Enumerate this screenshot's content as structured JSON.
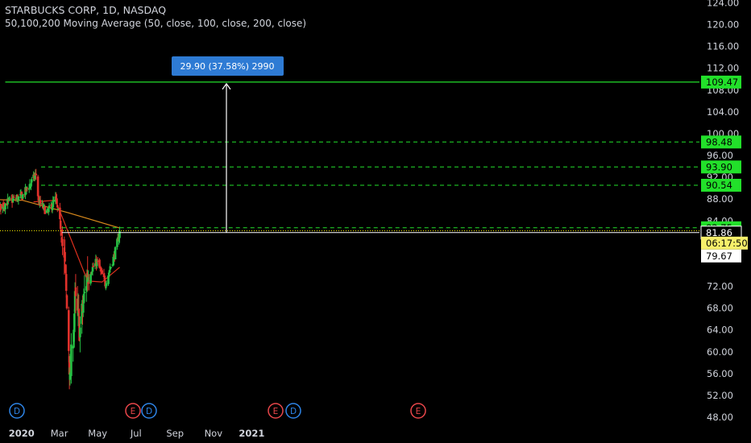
{
  "header": {
    "title": "STARBUCKS CORP, 1D, NASDAQ",
    "indicator": "50,100,200 Moving Average (50, close, 100, close, 200, close)"
  },
  "colors": {
    "background": "#000000",
    "up": "#26c244",
    "down": "#e0312b",
    "text": "#d1d4dc",
    "green_level": "#22e02a",
    "white_level": "#ffffff",
    "dotted_level": "#f2e600",
    "ma_fast": "#e0301e",
    "ma_slow": "#d98a1c",
    "callout": "#2e7bd4",
    "earnings": "#e8464a",
    "dividend": "#2e84e6"
  },
  "chart_data": {
    "type": "candlestick",
    "title": "STARBUCKS CORP, 1D, NASDAQ",
    "indicator": "50,100,200 Moving Average (50, close, 100, close, 200, close)",
    "y_axis_ticks": [
      "124.00",
      "120.00",
      "116.00",
      "112.00",
      "108.00",
      "104.00",
      "100.00",
      "96.00",
      "92.00",
      "88.00",
      "84.00",
      "72.00",
      "68.00",
      "64.00",
      "60.00",
      "56.00",
      "52.00",
      "48.00"
    ],
    "x_axis_ticks": [
      "Nov",
      "2020",
      "Mar",
      "May",
      "Jul",
      "Sep",
      "Nov",
      "2021"
    ],
    "ylim": [
      48,
      124
    ],
    "price_tags": [
      {
        "label": "109.47",
        "value": 109.47,
        "style": "green"
      },
      {
        "label": "98.48",
        "value": 98.48,
        "style": "green"
      },
      {
        "label": "93.90",
        "value": 93.9,
        "style": "green"
      },
      {
        "label": "90.54",
        "value": 90.54,
        "style": "green"
      },
      {
        "label": "82.75",
        "value": 82.75,
        "style": "green"
      },
      {
        "label": "81.86",
        "value": 81.86,
        "style": "white-outline"
      },
      {
        "label": "06:17:50",
        "value": 80.9,
        "style": "yellow"
      },
      {
        "label": "79.67",
        "value": 79.67,
        "style": "white"
      }
    ],
    "horizontal_levels": [
      {
        "value": 109.47,
        "style": "solid-green",
        "from": "Dec 2019"
      },
      {
        "value": 98.48,
        "style": "dashed-green",
        "from": "Oct 2019"
      },
      {
        "value": 93.9,
        "style": "dashed-green",
        "from": "Feb 2020"
      },
      {
        "value": 90.54,
        "style": "dashed-green",
        "from": "Feb 2020"
      },
      {
        "value": 82.75,
        "style": "dashed-green",
        "from": "Mar 2020"
      },
      {
        "value": 81.86,
        "style": "solid-white",
        "from": "Mar 2020"
      },
      {
        "value": 82.2,
        "style": "dotted-yellow",
        "from": "Oct 2019"
      }
    ],
    "measurement": {
      "label": "29.90 (37.58%) 2990",
      "from": 79.57,
      "to": 109.47
    },
    "events": [
      {
        "label": "D",
        "type": "dividend",
        "date": "Nov 2019"
      },
      {
        "label": "E",
        "type": "earnings",
        "date": "Jan 2020"
      },
      {
        "label": "D",
        "type": "dividend",
        "date": "Feb 2020"
      },
      {
        "label": "E",
        "type": "earnings",
        "date": "Apr 2020"
      },
      {
        "label": "D",
        "type": "dividend",
        "date": "May 2020"
      },
      {
        "label": "E",
        "type": "earnings",
        "date": "Jul 2020"
      }
    ],
    "price_path": [
      {
        "date": "Oct 21 2019",
        "close": 84.5
      },
      {
        "date": "Nov 15 2019",
        "close": 85.5
      },
      {
        "date": "Dec 10 2019",
        "close": 87.5
      },
      {
        "date": "Jan 2 2020",
        "close": 88.5
      },
      {
        "date": "Jan 24 2020",
        "close": 92.5
      },
      {
        "date": "Jan 28 2020",
        "close": 87.5
      },
      {
        "date": "Feb 11 2020",
        "close": 85.5
      },
      {
        "date": "Feb 24 2020",
        "close": 88.0
      },
      {
        "date": "Mar 3 2020",
        "close": 83.0
      },
      {
        "date": "Mar 10 2020",
        "close": 75.0
      },
      {
        "date": "Mar 16 2020",
        "close": 61.0
      },
      {
        "date": "Mar 18 2020",
        "close": 55.0
      },
      {
        "date": "Mar 26 2020",
        "close": 69.0
      },
      {
        "date": "Apr 3 2020",
        "close": 64.0
      },
      {
        "date": "Apr 14 2020",
        "close": 74.0
      },
      {
        "date": "Apr 30 2020",
        "close": 76.5
      },
      {
        "date": "May 13 2020",
        "close": 72.5
      },
      {
        "date": "May 27 2020",
        "close": 77.5
      },
      {
        "date": "Jun 5 2020",
        "close": 81.9
      }
    ],
    "moving_averages": [
      {
        "name": "MA 50",
        "color": "#e0301e",
        "points": [
          {
            "date": "Jan 20 2020",
            "value": 87.5
          },
          {
            "date": "Feb 24 2020",
            "value": 87.8
          },
          {
            "date": "Apr 15 2020",
            "value": 73.0
          },
          {
            "date": "May 8 2020",
            "value": 72.8
          },
          {
            "date": "Jun 5 2020",
            "value": 75.5
          }
        ]
      },
      {
        "name": "MA 200",
        "color": "#d98a1c",
        "points": [
          {
            "date": "Oct 21 2019",
            "value": 88.0
          },
          {
            "date": "Jan 2 2020",
            "value": 87.8
          },
          {
            "date": "Mar 15 2020",
            "value": 85.5
          },
          {
            "date": "Jun 5 2020",
            "value": 82.7
          }
        ]
      }
    ]
  }
}
